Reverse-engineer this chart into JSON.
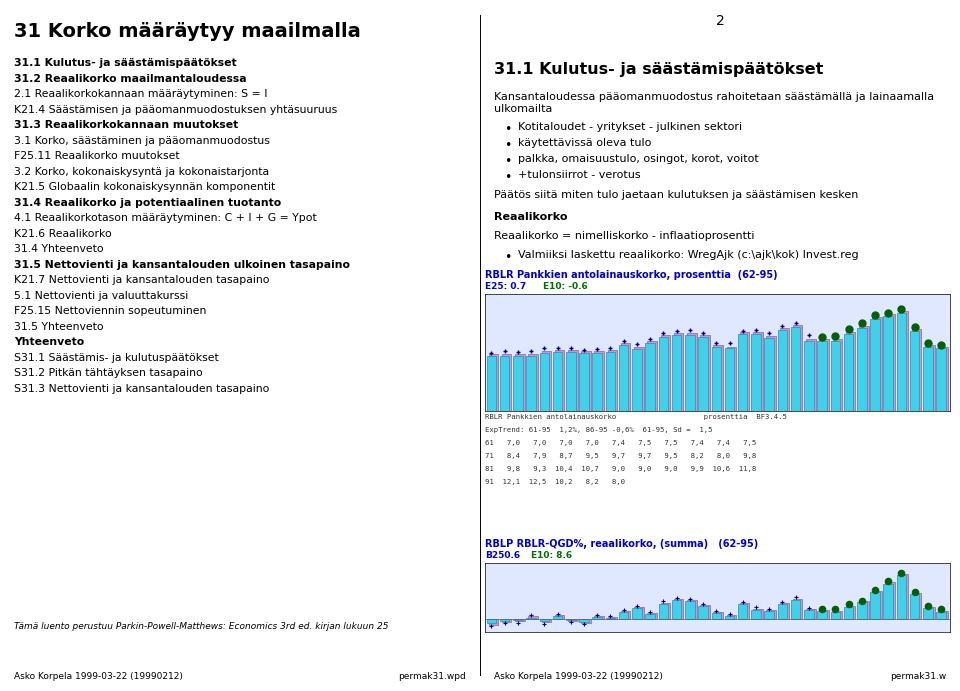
{
  "page_title": "31 Korko määräytyy maailmalla",
  "page_number": "2",
  "left_content": [
    {
      "text": "31.1 Kulutus- ja säästämispäätökset",
      "bold": true
    },
    {
      "text": "31.2 Reaalikorko maailmantaloudessa",
      "bold": true
    },
    {
      "text": "2.1 Reaalikorkokannaan määräytyminen: S = I",
      "bold": false
    },
    {
      "text": "K21.4 Säästämisen ja pääomanmuodostuksen yhtäsuuruus",
      "bold": false
    },
    {
      "text": "31.3 Reaalikorkokannaan muutokset",
      "bold": true
    },
    {
      "text": "3.1 Korko, säästäminen ja pääomanmuodostus",
      "bold": false
    },
    {
      "text": "F25.11 Reaalikorko muutokset",
      "bold": false
    },
    {
      "text": "3.2 Korko, kokonaiskysyntä ja kokonaistarjonta",
      "bold": false
    },
    {
      "text": "K21.5 Globaalin kokonaiskysynnän komponentit",
      "bold": false
    },
    {
      "text": "31.4 Reaalikorko ja potentiaalinen tuotanto",
      "bold": true
    },
    {
      "text": "4.1 Reaalikorkotason määräytyminen: C + I + G = Ypot",
      "bold": false
    },
    {
      "text": "K21.6 Reaalikorko",
      "bold": false
    },
    {
      "text": "31.4 Yhteenveto",
      "bold": false
    },
    {
      "text": "31.5 Nettovienti ja kansantalouden ulkoinen tasapaino",
      "bold": true
    },
    {
      "text": "K21.7 Nettovienti ja kansantalouden tasapaino",
      "bold": false
    },
    {
      "text": "5.1 Nettovienti ja valuuttakurssi",
      "bold": false
    },
    {
      "text": "F25.15 Nettoviennin sopeutuminen",
      "bold": false
    },
    {
      "text": "31.5 Yhteenveto",
      "bold": false
    },
    {
      "text": "Yhteenveto",
      "bold": true
    },
    {
      "text": "S31.1 Säästämis- ja kulutuspäätökset",
      "bold": false
    },
    {
      "text": "S31.2 Pitkän tähtäyksen tasapaino",
      "bold": false
    },
    {
      "text": "S31.3 Nettovienti ja kansantalouden tasapaino",
      "bold": false
    }
  ],
  "footnote_left": "Tämä luento perustuu Parkin-Powell-Matthews: Economics 3rd ed. kirjan lukuun 25",
  "footer_left_l": "Asko Korpela 1999-03-22 (19990212)",
  "footer_left_r": "permak31.wpd",
  "footer_right_l": "Asko Korpela 1999-03-22 (19990212)",
  "footer_right_r": "permak31.w",
  "right_title": "31.1 Kulutus- ja säästämispäätökset",
  "right_para1": "Kansantaloudessa pääomanmuodostus rahoitetaan säästämällä ja lainaamalla\nulkomailta",
  "right_bullets": [
    "Kotitaloudet - yritykset - julkinen sektori",
    "käytettävissä oleva tulo",
    "palkka, omaisuustulo, osingot, korot, voitot",
    "+tulonsiirrot - verotus"
  ],
  "right_para2": "Päätös siitä miten tulo jaetaan kulutuksen ja säästämisen kesken",
  "right_bold1": "Reaalikorko",
  "right_para3": "Reaalikorko = nimelliskorko - inflaatioprosentti",
  "right_bullet2": "Valmiiksi laskettu reaalikorko: WregAjk (c:\\ajk\\kok) Invest.reg",
  "chart1_title": "RBLR Pankkien antolainauskorko, prosenttia  (62-95)",
  "chart1_e25": "E25: 0.7",
  "chart1_e10": "E10: -0.6",
  "chart1_table": [
    "RBLR Pankkien antolainauskorko                    prosenttia  BF3.4.5",
    "ExpTrend: 61-95  1,2%, 86-95 -0,6%  61-95, Sd =  1,5",
    "61   7,0   7,0   7,0   7,0   7,4   7,5   7,5   7,4   7,4   7,5",
    "71   8,4   7,9   8,7   9,5   9,7   9,7   9,5   8,2   8,0   9,8",
    "81   9,8   9,3  10,4  10,7   9,0   9,0   9,0   9,9  10,6  11,8",
    "91  12,1  12,5  10,2   8,2   8,0"
  ],
  "chart2_title": "RBLP RBLR-QGD%, reaalikorko, (summa)   (62-95)",
  "chart2_b250": "B250.6",
  "chart2_e10": "E10: 8.6",
  "bar1_values": [
    7.0,
    7.0,
    7.0,
    7.0,
    7.4,
    7.5,
    7.5,
    7.4,
    7.4,
    7.5,
    8.4,
    7.9,
    8.7,
    9.5,
    9.7,
    9.7,
    9.5,
    8.2,
    8.0,
    9.8,
    9.8,
    9.3,
    10.4,
    10.7,
    9.0,
    9.0,
    9.0,
    9.9,
    10.6,
    11.8,
    12.1,
    12.5,
    10.2,
    8.2,
    8.0
  ],
  "bar2_values": [
    -0.8,
    -0.3,
    -0.2,
    0.2,
    -0.4,
    0.5,
    -0.2,
    -0.5,
    0.3,
    0.1,
    1.2,
    1.8,
    0.8,
    2.5,
    3.2,
    3.0,
    2.2,
    1.0,
    0.5,
    2.5,
    1.5,
    1.3,
    2.5,
    3.2,
    1.5,
    1.3,
    1.2,
    2.0,
    2.8,
    4.5,
    6.0,
    7.5,
    4.2,
    1.8,
    1.2
  ],
  "cyan_color": "#40D0E8",
  "mauve_color": "#C898C8",
  "mauve_edge": "#9060A0",
  "cyan_edge": "#2090C0",
  "dot_color_blue": "#000080",
  "dot_color_green": "#006000",
  "title_blue": "#0000CC",
  "green_label": "#007000",
  "bg_chart": "#E0E8FF",
  "background_color": "#FFFFFF"
}
